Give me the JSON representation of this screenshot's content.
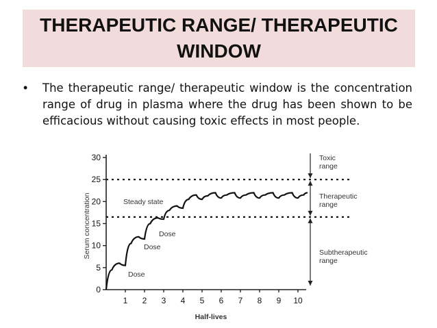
{
  "slide": {
    "title": "THERAPEUTIC RANGE/ THERAPEUTIC WINDOW",
    "bullet": "The therapeutic range/ therapeutic window is the concentration range of drug in plasma where the drug has been shown to be efficacious without causing toxic effects in most people."
  },
  "chart_data": {
    "type": "line",
    "xlabel": "Half-lives",
    "ylabel": "Serum concentration",
    "xlim": [
      0,
      10.5
    ],
    "ylim": [
      0,
      30
    ],
    "x_ticks": [
      1,
      2,
      3,
      4,
      5,
      6,
      7,
      8,
      9,
      10
    ],
    "y_ticks": [
      0,
      5,
      10,
      15,
      20,
      25,
      30
    ],
    "thresholds": [
      25,
      16.5
    ],
    "annotations": {
      "steady_state": "Steady state",
      "dose": "Dose",
      "toxic": [
        "Toxic",
        "range"
      ],
      "therapeutic": [
        "Therapeutic",
        "range"
      ],
      "subtherapeutic": [
        "Subtherapeutic",
        "range"
      ]
    },
    "series": [
      {
        "values": [
          [
            0,
            0
          ],
          [
            0.3,
            4.5
          ],
          [
            0.7,
            6
          ],
          [
            1,
            5.5
          ],
          [
            1.3,
            10.5
          ],
          [
            1.7,
            12
          ],
          [
            2,
            11.5
          ],
          [
            2.3,
            15
          ],
          [
            2.7,
            16.3
          ],
          [
            3,
            16
          ],
          [
            3.3,
            18
          ],
          [
            3.7,
            19
          ],
          [
            4,
            18.5
          ],
          [
            4.3,
            20.5
          ],
          [
            4.7,
            21.5
          ],
          [
            5,
            20.5
          ],
          [
            5.3,
            21.3
          ],
          [
            5.7,
            22
          ],
          [
            6,
            20.8
          ],
          [
            6.3,
            21.5
          ],
          [
            6.7,
            22
          ],
          [
            7,
            20.8
          ],
          [
            7.3,
            21.5
          ],
          [
            7.7,
            22
          ],
          [
            8,
            20.8
          ],
          [
            8.3,
            21.5
          ],
          [
            8.7,
            22
          ],
          [
            9,
            20.8
          ],
          [
            9.3,
            21.5
          ],
          [
            9.7,
            22
          ],
          [
            10,
            20.8
          ],
          [
            10.3,
            21.5
          ],
          [
            10.5,
            22
          ]
        ]
      }
    ]
  }
}
